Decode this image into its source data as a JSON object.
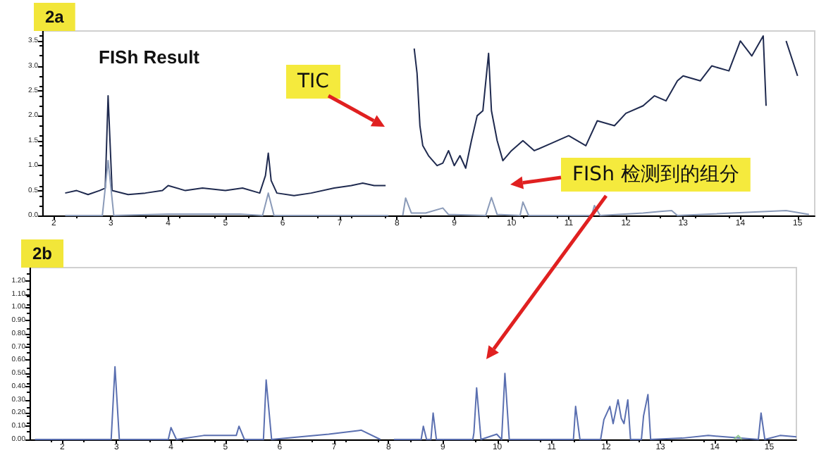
{
  "chart_data": [
    {
      "type": "line",
      "title": "2a",
      "xlim": [
        1.8,
        15.3
      ],
      "ylim": [
        0,
        3.7
      ],
      "xticks": [
        2,
        3,
        4,
        5,
        6,
        7,
        8,
        9,
        10,
        11,
        12,
        13,
        14,
        15
      ],
      "yticks": [
        {
          "value": 0,
          "label": "0.0"
        },
        {
          "value": 0.5,
          "label": "0.5"
        },
        {
          "value": 1,
          "label": "1.0"
        },
        {
          "value": 1.5,
          "label": "1.5"
        },
        {
          "value": 2,
          "label": "2.0"
        },
        {
          "value": 2.5,
          "label": "2.5"
        },
        {
          "value": 3,
          "label": "3.0"
        },
        {
          "value": 3.5,
          "label": "3.5"
        }
      ],
      "grid": false,
      "marker": "none",
      "line_style": "solid",
      "annotations": [
        "FISh Result",
        "TIC",
        "FISh 检测到的组分"
      ],
      "series": [
        {
          "color": "#1f2a4f",
          "x": [
            2.2,
            2.4,
            2.6,
            2.8,
            2.9,
            2.95,
            3.02,
            3.3,
            3.6,
            3.9,
            4.0,
            4.3,
            4.6,
            5.0,
            5.3,
            5.6,
            5.7,
            5.75,
            5.8,
            5.9,
            6.2,
            6.5,
            6.9,
            7.2,
            7.4,
            7.6,
            7.8,
            7.88,
            8.3,
            8.35,
            8.4,
            8.45,
            8.55,
            8.7,
            8.8,
            8.9,
            9.0,
            9.1,
            9.2,
            9.3,
            9.4,
            9.5,
            9.6,
            9.65,
            9.75,
            9.85,
            10.0,
            10.2,
            10.4,
            10.7,
            11.0,
            11.3,
            11.5,
            11.8,
            12.0,
            12.3,
            12.5,
            12.7,
            12.9,
            13.0,
            13.3,
            13.5,
            13.8,
            14.0,
            14.2,
            14.4,
            14.45,
            14.55,
            14.8,
            15.0
          ],
          "values": [
            0.45,
            0.5,
            0.42,
            0.5,
            0.55,
            2.4,
            0.5,
            0.42,
            0.45,
            0.5,
            0.6,
            0.5,
            0.55,
            0.5,
            0.55,
            0.45,
            0.8,
            1.25,
            0.7,
            0.45,
            0.4,
            0.45,
            0.55,
            0.6,
            0.65,
            0.6,
            0.6,
            null,
            3.35,
            2.85,
            1.8,
            1.4,
            1.2,
            1.0,
            1.05,
            1.3,
            1.0,
            1.2,
            0.95,
            1.5,
            2.0,
            2.1,
            3.25,
            2.1,
            1.5,
            1.1,
            1.3,
            1.5,
            1.3,
            1.45,
            1.6,
            1.4,
            1.9,
            1.8,
            2.05,
            2.2,
            2.4,
            2.3,
            2.7,
            2.8,
            2.7,
            3.0,
            2.9,
            3.5,
            3.2,
            3.6,
            2.2,
            null,
            3.5,
            2.8
          ]
        },
        {
          "color": "#8a9ab8",
          "x": [
            2.2,
            2.85,
            2.95,
            3.05,
            4.0,
            5.25,
            5.65,
            5.75,
            5.85,
            7.85,
            7.9,
            8.05,
            8.1,
            8.15,
            8.25,
            8.5,
            8.8,
            8.9,
            9.55,
            9.65,
            9.75,
            10.15,
            10.2,
            10.3,
            11.4,
            11.45,
            11.55,
            12.3,
            12.6,
            12.8,
            12.9,
            14.8,
            15.2
          ],
          "values": [
            0,
            0,
            1.1,
            0,
            0.03,
            0.03,
            0,
            0.45,
            0,
            0,
            null,
            null,
            0,
            0.35,
            0.05,
            0.05,
            0.15,
            0.02,
            0,
            0.36,
            0.02,
            0,
            0.27,
            0,
            0,
            0.2,
            0,
            0.05,
            0.08,
            0.1,
            0,
            0.1,
            0.02
          ]
        }
      ]
    },
    {
      "type": "line",
      "title": "2b",
      "xlim": [
        1.4,
        15.5
      ],
      "ylim": [
        0,
        1.3
      ],
      "xticks": [
        2,
        3,
        4,
        5,
        6,
        7,
        8,
        9,
        10,
        11,
        12,
        13,
        14,
        15
      ],
      "yticks": [
        {
          "value": 0,
          "label": "0.00"
        },
        {
          "value": 0.1,
          "label": "0.10"
        },
        {
          "value": 0.2,
          "label": "0.20"
        },
        {
          "value": 0.3,
          "label": "0.30"
        },
        {
          "value": 0.4,
          "label": "0.40"
        },
        {
          "value": 0.5,
          "label": "0.50"
        },
        {
          "value": 0.6,
          "label": "0.60"
        },
        {
          "value": 0.7,
          "label": "0.70"
        },
        {
          "value": 0.8,
          "label": "0.80"
        },
        {
          "value": 0.9,
          "label": "0.90"
        },
        {
          "value": 1.0,
          "label": "1.00"
        },
        {
          "value": 1.1,
          "label": "1.10"
        },
        {
          "value": 1.2,
          "label": "1.20"
        }
      ],
      "grid": false,
      "marker": "none",
      "line_style": "solid",
      "series": [
        {
          "color": "#5a6fb0",
          "x": [
            1.5,
            2.9,
            2.97,
            3.05,
            3.95,
            4.0,
            4.1,
            4.6,
            5.2,
            5.25,
            5.35,
            5.7,
            5.75,
            5.85,
            6.9,
            7.5,
            7.85,
            7.9,
            8.1,
            8.6,
            8.64,
            8.7,
            8.78,
            8.82,
            8.88,
            9.55,
            9.57,
            9.62,
            9.7,
            9.99,
            10.08,
            10.14,
            10.22,
            11.4,
            11.44,
            11.52,
            11.9,
            11.96,
            12.07,
            12.13,
            12.22,
            12.28,
            12.33,
            12.4,
            12.45,
            12.65,
            12.69,
            12.77,
            12.82,
            13.4,
            13.88,
            14.8,
            14.85,
            14.92,
            15.2,
            15.5
          ],
          "values": [
            0,
            0,
            0.55,
            0,
            0,
            0.09,
            0,
            0.03,
            0.03,
            0.1,
            0,
            0,
            0.45,
            0,
            0.04,
            0.07,
            0,
            null,
            0,
            0,
            0.1,
            0,
            0,
            0.2,
            0,
            0,
            0.05,
            0.39,
            0,
            0.04,
            0,
            0.5,
            0,
            0,
            0.25,
            0,
            0,
            0.15,
            0.25,
            0.12,
            0.3,
            0.16,
            0.12,
            0.3,
            0,
            0,
            0.18,
            0.34,
            0,
            0.01,
            0.03,
            0,
            0.2,
            0,
            0.03,
            0.02
          ]
        },
        {
          "color": "#8fc78f",
          "x": [
            14.35,
            14.43,
            14.5
          ],
          "values": [
            0,
            0.03,
            0
          ]
        }
      ]
    }
  ]
}
